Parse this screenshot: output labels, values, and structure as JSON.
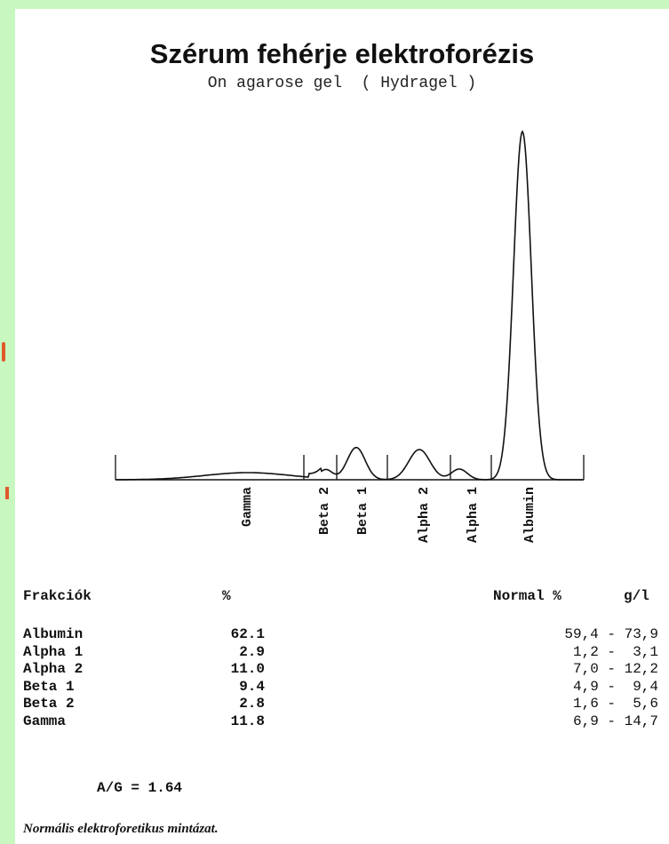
{
  "header": {
    "title": "Szérum fehérje elektroforézis",
    "subtitle": "On agarose gel  ( Hydragel )"
  },
  "chart_data": {
    "type": "line",
    "title": "Szérum fehérje elektroforézis",
    "subtitle": "On agarose gel  ( Hydragel )",
    "xlabel": "",
    "ylabel": "",
    "grid": false,
    "fraction_labels": [
      "Gamma",
      "Beta 2",
      "Beta 1",
      "Alpha 2",
      "Alpha 1",
      "Albumin"
    ],
    "fractions": [
      {
        "name": "Gamma",
        "percent": 11.8
      },
      {
        "name": "Beta 2",
        "percent": 2.8
      },
      {
        "name": "Beta 1",
        "percent": 9.4
      },
      {
        "name": "Alpha 2",
        "percent": 11.0
      },
      {
        "name": "Alpha 1",
        "percent": 2.9
      },
      {
        "name": "Albumin",
        "percent": 62.1
      }
    ]
  },
  "table": {
    "col_fraction": "Frakciók",
    "col_percent": "%",
    "col_normal": "Normal %",
    "col_gl": "g/l",
    "rows": [
      {
        "name": "Albumin",
        "percent": "62.1",
        "normal": "59,4 - 73,9"
      },
      {
        "name": "Alpha 1",
        "percent": "2.9",
        "normal": "1,2 -  3,1"
      },
      {
        "name": "Alpha 2",
        "percent": "11.0",
        "normal": "7,0 - 12,2"
      },
      {
        "name": "Beta 1",
        "percent": "9.4",
        "normal": "4,9 -  9,4"
      },
      {
        "name": "Beta 2",
        "percent": "2.8",
        "normal": "1,6 -  5,6"
      },
      {
        "name": "Gamma",
        "percent": "11.8",
        "normal": "6,9 - 14,7"
      }
    ]
  },
  "ratio": "A/G = 1.64",
  "note": "Normális elektroforetikus mintázat.",
  "colors": {
    "background": "#c8f7c0",
    "page": "#ffffff",
    "ink": "#111111",
    "accent": "#e05a2a"
  }
}
